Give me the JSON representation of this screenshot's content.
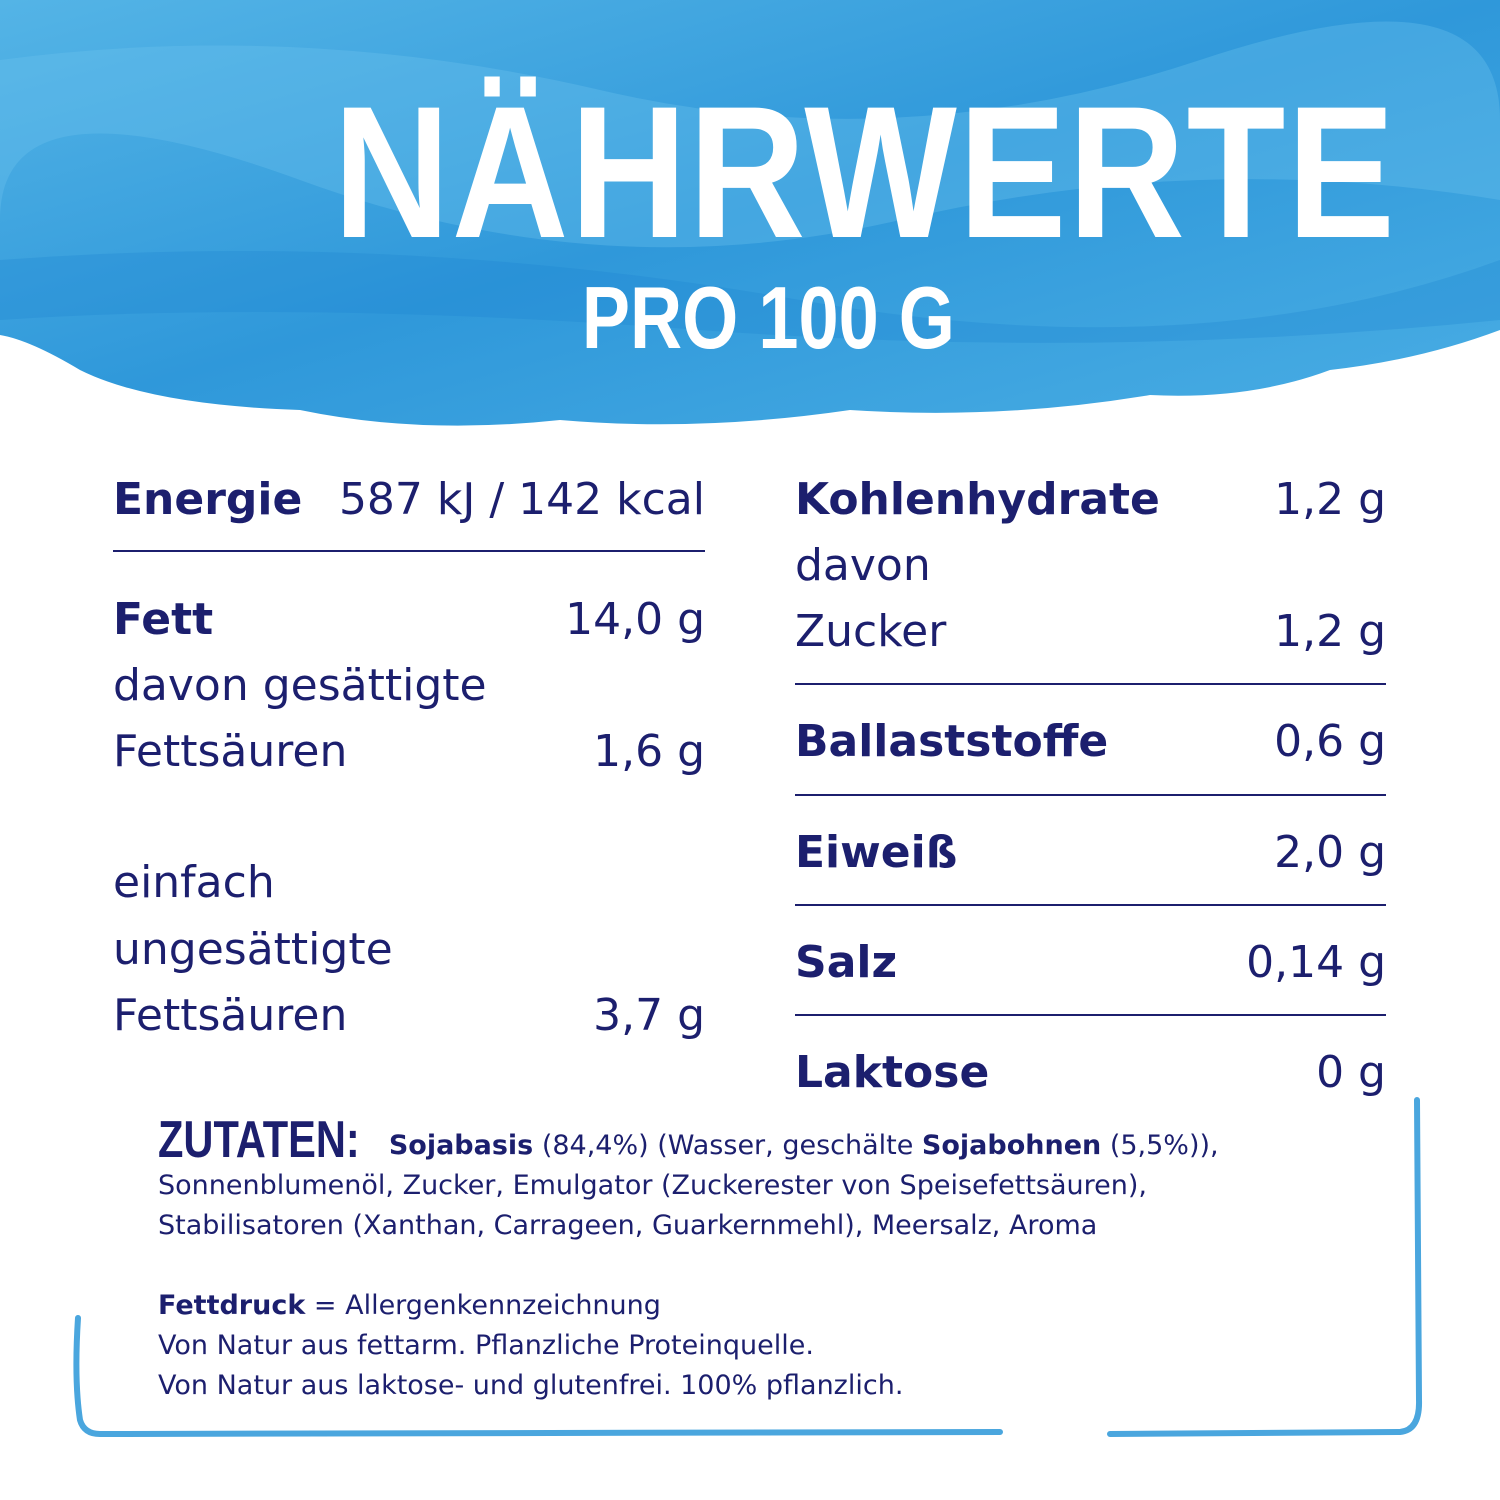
{
  "header": {
    "title": "NÄHRWERTE",
    "subtitle": "PRO 100 G"
  },
  "colors": {
    "text": "#1c1f6e",
    "accent_blue": "#3a9fdc"
  },
  "left": {
    "energie": {
      "label": "Energie",
      "value": "587 kJ / 142 kcal"
    },
    "fett": {
      "label": "Fett",
      "value": "14,0 g"
    },
    "gesaettigte": {
      "label1": "davon gesättigte",
      "label2": "Fettsäuren",
      "value": "1,6 g"
    },
    "einfach": {
      "label1": "einfach",
      "label2": "ungesättigte",
      "label3": "Fettsäuren",
      "value": "3,7 g"
    }
  },
  "right": {
    "kohlenhydrate": {
      "label": "Kohlenhydrate",
      "value": "1,2 g"
    },
    "zucker": {
      "label1": "davon",
      "label2": "Zucker",
      "value": "1,2 g"
    },
    "ballaststoffe": {
      "label": "Ballaststoffe",
      "value": "0,6 g"
    },
    "eiweiss": {
      "label": "Eiweiß",
      "value": "2,0 g"
    },
    "salz": {
      "label": "Salz",
      "value": "0,14 g"
    },
    "laktose": {
      "label": "Laktose",
      "value": "0 g"
    }
  },
  "ingredients": {
    "heading": "ZUTATEN:",
    "p1": "Sojabasis",
    "p2": " (84,4%) (Wasser, geschälte ",
    "p3": "Sojabohnen",
    "p4": " (5,5%)),",
    "line2": "Sonnenblumenöl, Zucker, Emulgator (Zuckerester von Speisefettsäuren),",
    "line3": "Stabilisatoren (Xanthan, Carrageen, Guarkernmehl), Meersalz, Aroma",
    "legend_bold": "Fettdruck",
    "legend_rest": " = Allergenkennzeichnung",
    "note1": "Von Natur aus fettarm. Pflanzliche Proteinquelle.",
    "note2": "Von Natur aus laktose- und glutenfrei. 100% pflanzlich."
  }
}
